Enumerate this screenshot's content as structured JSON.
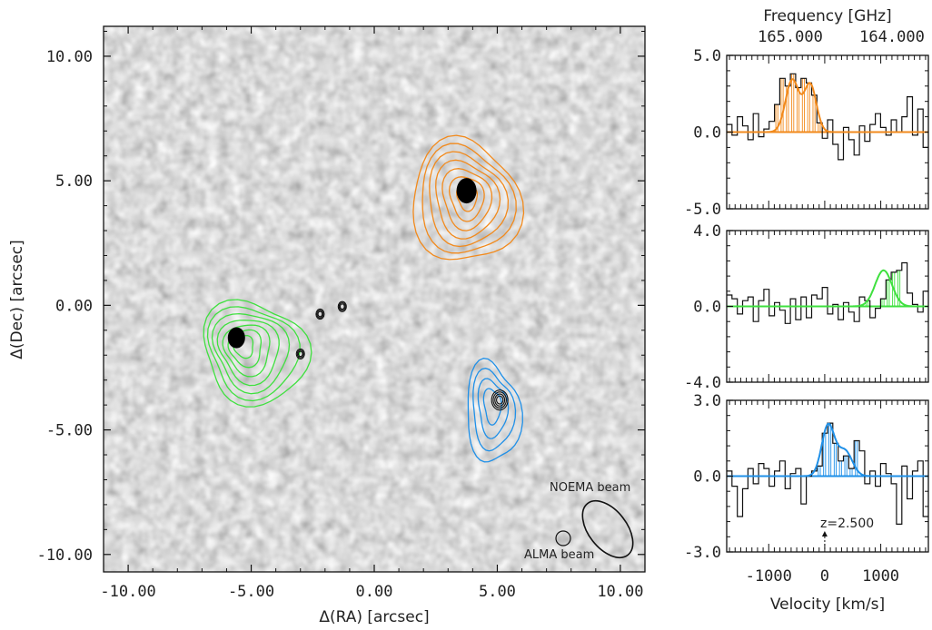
{
  "chart_data": [
    {
      "type": "contour",
      "xlabel": "Δ(RA) [arcsec]",
      "ylabel": "Δ(Dec) [arcsec]",
      "xlim": [
        -11.0,
        11.0
      ],
      "ylim": [
        -10.7,
        11.2
      ],
      "x_ticks": [
        "-10.00",
        "-5.00",
        "0.00",
        "5.00",
        "10.00"
      ],
      "y_ticks": [
        "10.00",
        "5.00",
        "0.00",
        "-5.00",
        "-10.00"
      ],
      "background": "grayscale noise map",
      "beam_labels": {
        "noema": "NOEMA beam",
        "alma": "ALMA beam"
      },
      "sources": [
        {
          "name": "orange",
          "color": "#f28a1c",
          "x": 3.8,
          "y": 4.4,
          "contour_levels": 7
        },
        {
          "name": "green",
          "color": "#3fe03f",
          "x": -5.4,
          "y": -1.6,
          "contour_levels": 7
        },
        {
          "name": "blue",
          "color": "#1f90e8",
          "x": 4.8,
          "y": -3.9,
          "contour_levels": 4
        }
      ],
      "black_contours": [
        {
          "x": 3.75,
          "y": 4.6
        },
        {
          "x": -5.6,
          "y": -1.3
        },
        {
          "x": 5.1,
          "y": -3.8
        },
        {
          "x": -1.3,
          "y": -0.05
        },
        {
          "x": -3.0,
          "y": -1.95
        },
        {
          "x": -2.2,
          "y": -0.35
        }
      ]
    },
    {
      "type": "spectrum",
      "panels": [
        {
          "color": "#f28a1c",
          "ylim": [
            -5.0,
            5.0
          ],
          "yticks": [
            "5.0",
            "0.0",
            "-5.0"
          ],
          "gauss": [
            {
              "amp": 3.4,
              "mu": -580,
              "sigma": 120
            },
            {
              "amp": 3.1,
              "mu": -260,
              "sigma": 110
            }
          ],
          "steps": [
            0.5,
            -0.2,
            1.0,
            0.4,
            -0.5,
            1.2,
            -0.3,
            0.2,
            0.7,
            1.8,
            3.5,
            3.0,
            3.8,
            2.9,
            3.5,
            3.2,
            2.4,
            0.6,
            -0.4,
            0.8,
            -0.8,
            -1.8,
            0.3,
            -0.5,
            -1.5,
            0.4,
            -0.6,
            0.5,
            1.2,
            0.3,
            -0.2,
            0.8,
            0.0,
            1.0,
            2.3,
            -0.2,
            1.5,
            -1.0
          ]
        },
        {
          "color": "#3fe03f",
          "ylim": [
            -4.0,
            4.0
          ],
          "yticks": [
            "4.0",
            "0.0",
            "-4.0"
          ],
          "gauss": [
            {
              "amp": 1.9,
              "mu": 1050,
              "sigma": 150
            }
          ],
          "steps": [
            0.6,
            0.4,
            -0.4,
            0.3,
            0.5,
            -0.8,
            0.3,
            0.9,
            -0.5,
            0.2,
            -0.2,
            -0.9,
            0.4,
            -0.7,
            0.5,
            -0.6,
            0.6,
            0.4,
            1.0,
            -0.4,
            0.1,
            -0.7,
            0.2,
            -0.3,
            -0.8,
            0.5,
            0.3,
            -0.6,
            -0.1,
            0.4,
            1.4,
            1.8,
            1.9,
            2.3,
            0.7,
            0.1,
            -0.3,
            0.8
          ]
        },
        {
          "color": "#1f90e8",
          "ylim": [
            -3.0,
            3.0
          ],
          "yticks": [
            "3.0",
            "0.0",
            "-3.0"
          ],
          "gauss": [
            {
              "amp": 2.0,
              "mu": 60,
              "sigma": 115
            },
            {
              "amp": 1.0,
              "mu": 360,
              "sigma": 130
            }
          ],
          "steps": [
            0.2,
            -0.4,
            -1.6,
            -0.5,
            0.3,
            -0.3,
            0.5,
            0.3,
            -0.4,
            0.2,
            0.6,
            -0.5,
            0.1,
            0.3,
            -1.1,
            0.0,
            0.2,
            0.4,
            1.7,
            2.1,
            1.3,
            0.6,
            0.8,
            0.3,
            1.4,
            1.0,
            -0.3,
            0.2,
            -0.4,
            0.5,
            0.1,
            -0.3,
            -1.9,
            0.4,
            -0.9,
            0.2,
            0.6,
            -1.6
          ]
        }
      ],
      "x_ticks": [
        "-1000",
        "0",
        "1000"
      ],
      "xlim": [
        -1750,
        1850
      ],
      "xlabel": "Velocity [km/s]",
      "top_label": "Frequency [GHz]",
      "top_ticks": [
        "165.000",
        "164.000"
      ],
      "marker_label": "z=2.500",
      "marker_velocity": 0
    }
  ]
}
